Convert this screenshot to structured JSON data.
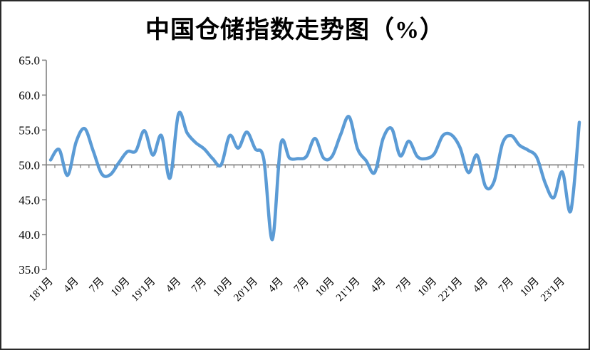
{
  "title": "中国仓储指数走势图（%）",
  "chart_data": {
    "type": "line",
    "title": "中国仓储指数走势图（%）",
    "series_name": "中国仓储指数",
    "unit": "%",
    "grid": false,
    "legend": "none",
    "ylim": [
      35.0,
      65.0
    ],
    "ytick_step": 5.0,
    "ytick_labels": [
      "65.0",
      "60.0",
      "55.0",
      "50.0",
      "45.0",
      "40.0",
      "35.0"
    ],
    "x_axis_cross_value": 50.0,
    "x_tick_labels": [
      "18'1月",
      "4月",
      "7月",
      "10月",
      "19'1月",
      "4月",
      "7月",
      "10月",
      "20'1月",
      "4月",
      "7月",
      "10月",
      "21'1月",
      "4月",
      "7月",
      "10月",
      "22'1月",
      "4月",
      "7月",
      "10月",
      "23'1月"
    ],
    "x_tick_positions": [
      0,
      3,
      6,
      9,
      12,
      15,
      18,
      21,
      24,
      27,
      30,
      33,
      36,
      39,
      42,
      45,
      48,
      51,
      54,
      57,
      60
    ],
    "values": [
      50.7,
      52.2,
      48.5,
      53.3,
      55.2,
      52.0,
      48.7,
      48.6,
      50.3,
      51.9,
      52.0,
      54.9,
      51.4,
      54.2,
      48.1,
      57.3,
      54.6,
      53.2,
      52.3,
      50.9,
      50.0,
      54.2,
      52.4,
      54.7,
      52.3,
      50.8,
      39.3,
      53.0,
      51.0,
      50.9,
      51.2,
      53.8,
      51.0,
      51.2,
      54.3,
      56.9,
      52.3,
      50.6,
      48.9,
      53.8,
      55.2,
      51.3,
      53.4,
      51.2,
      50.9,
      51.6,
      54.2,
      54.3,
      52.5,
      48.9,
      51.4,
      46.9,
      47.6,
      53.1,
      54.2,
      52.8,
      52.1,
      51.1,
      47.4,
      45.3,
      49.0,
      43.4,
      56.1
    ],
    "line_color": "#5B9BD5",
    "axis_color": "#808080",
    "text_color": "#000000"
  }
}
